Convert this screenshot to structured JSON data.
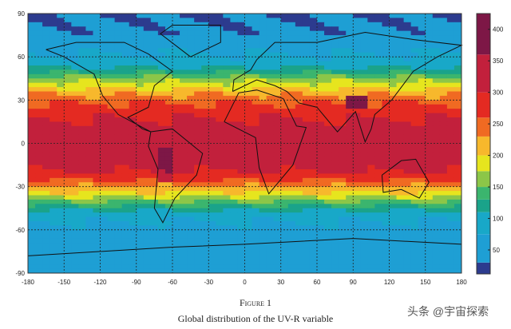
{
  "figure": {
    "label": "Figure 1",
    "caption": "Global distribution of the UV-R variable",
    "watermark": "头条 @宇宙探索"
  },
  "chart_data": {
    "type": "heatmap",
    "title": "",
    "xlim": [
      -180,
      180
    ],
    "ylim": [
      -90,
      90
    ],
    "x_ticks": [
      -180,
      -150,
      -120,
      -90,
      -60,
      -30,
      0,
      30,
      60,
      90,
      120,
      150,
      180
    ],
    "y_ticks": [
      -90,
      -60,
      -30,
      0,
      30,
      60,
      90
    ],
    "grid": "dashed every 30 degrees",
    "colorbar": {
      "ticks": [
        50,
        100,
        150,
        200,
        250,
        300,
        350,
        400
      ],
      "range": [
        12,
        425
      ],
      "location": "right",
      "colors": [
        "#2c3b8e",
        "#1e9fd4",
        "#18a8c8",
        "#1aa38a",
        "#3bb56e",
        "#8cc648",
        "#e6e51e",
        "#f7b82c",
        "#f06a22",
        "#e42a22",
        "#c2203c",
        "#7d1746"
      ],
      "bounds": [
        0,
        30,
        75,
        110,
        130,
        150,
        175,
        200,
        230,
        260,
        300,
        360,
        430
      ]
    },
    "zonal_profile_estimate": {
      "lat": [
        90,
        75,
        60,
        50,
        40,
        30,
        20,
        10,
        0,
        -10,
        -20,
        -30,
        -40,
        -50,
        -60,
        -70,
        -80,
        -90
      ],
      "value": [
        30,
        40,
        80,
        120,
        190,
        250,
        290,
        320,
        330,
        330,
        300,
        230,
        150,
        90,
        60,
        40,
        50,
        40
      ]
    }
  }
}
